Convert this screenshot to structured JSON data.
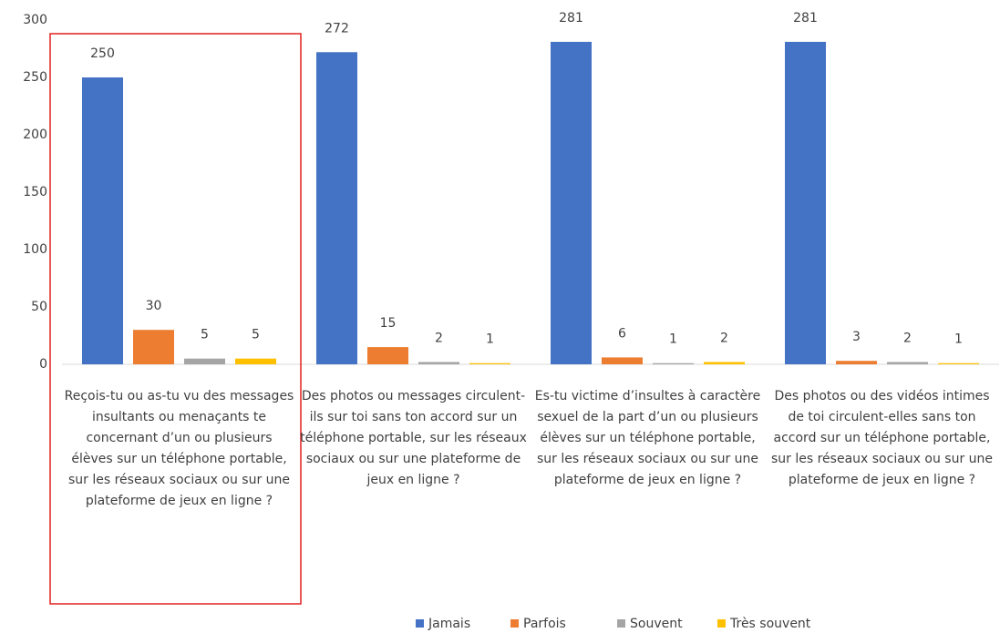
{
  "chart_data": {
    "type": "bar",
    "categories": [
      "Reçois-tu ou as-tu vu des messages insultants ou menaçants te concernant d’un ou plusieurs élèves sur un téléphone portable, sur les réseaux sociaux ou sur une plateforme de jeux en ligne ?",
      "Des photos ou messages circulent-ils sur toi sans ton accord sur un téléphone portable, sur les réseaux sociaux ou sur une plateforme de jeux en ligne ?",
      "Es-tu victime d’insultes à caractère sexuel de la part d’un ou plusieurs élèves sur un téléphone portable, sur les réseaux sociaux ou sur une plateforme de jeux en ligne ?",
      "Des photos ou des vidéos intimes de toi circulent-elles sans ton accord sur un téléphone portable, sur les réseaux sociaux ou sur une plateforme de jeux en ligne ?"
    ],
    "series": [
      {
        "name": "Jamais",
        "color": "#4472c4",
        "values": [
          250,
          272,
          281,
          281
        ]
      },
      {
        "name": "Parfois",
        "color": "#ed7d31",
        "values": [
          30,
          15,
          6,
          3
        ]
      },
      {
        "name": "Souvent",
        "color": "#a5a5a5",
        "values": [
          5,
          2,
          1,
          2
        ]
      },
      {
        "name": "Très souvent",
        "color": "#ffc000",
        "values": [
          5,
          1,
          2,
          1
        ]
      }
    ],
    "ylim": [
      0,
      300
    ],
    "yticks": [
      0,
      50,
      100,
      150,
      200,
      250,
      300
    ],
    "grid": false,
    "legend": "bottom"
  }
}
